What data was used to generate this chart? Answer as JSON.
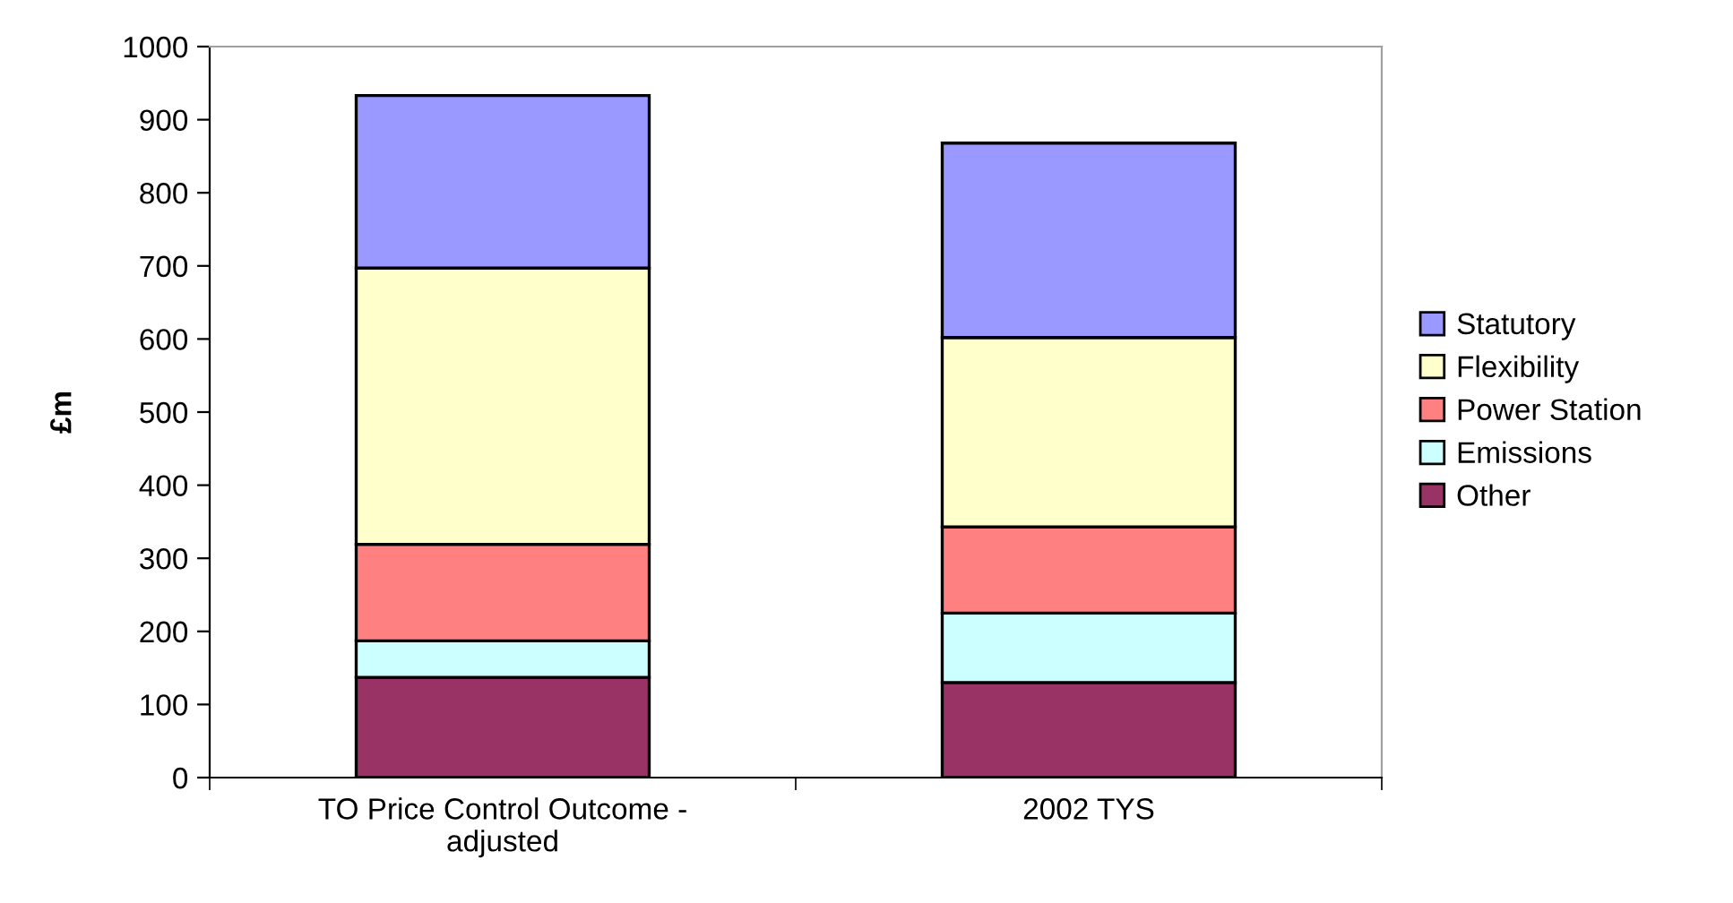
{
  "chart_data": {
    "type": "bar",
    "stacked": true,
    "ylabel": "£m",
    "categories": [
      "TO Price Control Outcome - adjusted",
      "2002 TYS"
    ],
    "series": [
      {
        "name": "Other",
        "color": "#993366",
        "values": [
          137,
          130
        ]
      },
      {
        "name": "Emissions",
        "color": "#ccffff",
        "values": [
          50,
          95
        ]
      },
      {
        "name": "Power Station",
        "color": "#ff8080",
        "values": [
          132,
          118
        ]
      },
      {
        "name": "Flexibility",
        "color": "#ffffcc",
        "values": [
          378,
          259
        ]
      },
      {
        "name": "Statutory",
        "color": "#9999ff",
        "values": [
          236,
          266
        ]
      }
    ],
    "ylim": [
      0,
      1000
    ],
    "yticks": [
      0,
      100,
      200,
      300,
      400,
      500,
      600,
      700,
      800,
      900,
      1000
    ],
    "grid": false,
    "legend": "right"
  }
}
